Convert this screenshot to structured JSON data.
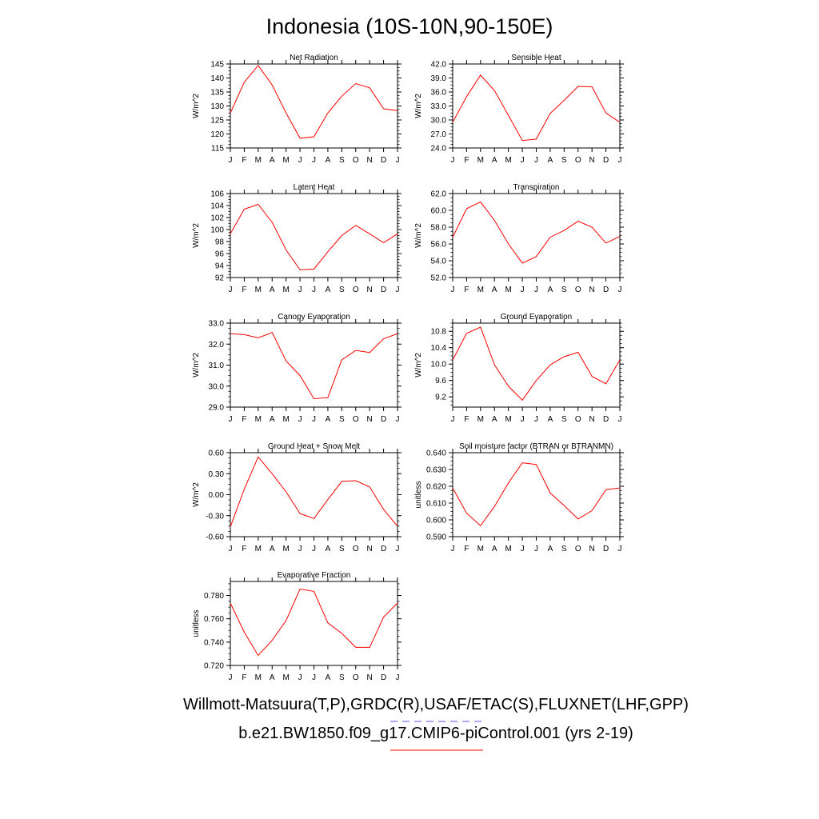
{
  "title": "Indonesia (10S-10N,90-150E)",
  "legend": {
    "line1": "Willmott-Matsuura(T,P),GRDC(R),USAF/ETAC(S),FLUXNET(LHF,GPP)",
    "line2": "b.e21.BW1850.f09_g17.CMIP6-piControl.001 (yrs 2-19)",
    "line1_color": "#5555ee",
    "line2_color": "#ff0000"
  },
  "chart_data": [
    {
      "type": "line",
      "title": "Net Radiation",
      "ylabel": "W/m^2",
      "x": [
        "J",
        "F",
        "M",
        "A",
        "M",
        "J",
        "J",
        "A",
        "S",
        "O",
        "N",
        "D",
        "J"
      ],
      "values": [
        127.5,
        138.5,
        144.5,
        137.5,
        127.5,
        118.5,
        119.0,
        127.5,
        133.5,
        138.0,
        136.5,
        129.0,
        128.3
      ],
      "ylim": [
        115,
        145
      ],
      "yticks": [
        "115",
        "120",
        "125",
        "130",
        "135",
        "140",
        "145"
      ],
      "line_color": "#ff0000"
    },
    {
      "type": "line",
      "title": "Sensible Heat",
      "ylabel": "W/m^2",
      "x": [
        "J",
        "F",
        "M",
        "A",
        "M",
        "J",
        "J",
        "A",
        "S",
        "O",
        "N",
        "D",
        "J"
      ],
      "values": [
        29.5,
        35.0,
        39.6,
        36.3,
        31.0,
        25.6,
        25.9,
        31.4,
        34.2,
        37.2,
        37.1,
        31.5,
        29.5
      ],
      "ylim": [
        24.0,
        42.0
      ],
      "yticks": [
        "24.0",
        "27.0",
        "30.0",
        "33.0",
        "36.0",
        "39.0",
        "42.0"
      ],
      "line_color": "#ff0000"
    },
    {
      "type": "line",
      "title": "Latent Heat",
      "ylabel": "W/m^2",
      "x": [
        "J",
        "F",
        "M",
        "A",
        "M",
        "J",
        "J",
        "A",
        "S",
        "O",
        "N",
        "D",
        "J"
      ],
      "values": [
        99.3,
        103.4,
        104.2,
        101.2,
        96.6,
        93.3,
        93.4,
        96.3,
        99.0,
        100.7,
        99.3,
        97.8,
        99.3
      ],
      "ylim": [
        92,
        106
      ],
      "yticks": [
        "92",
        "94",
        "96",
        "98",
        "100",
        "102",
        "104",
        "106"
      ],
      "line_color": "#ff0000"
    },
    {
      "type": "line",
      "title": "Transpiration",
      "ylabel": "W/m^2",
      "x": [
        "J",
        "F",
        "M",
        "A",
        "M",
        "J",
        "J",
        "A",
        "S",
        "O",
        "N",
        "D",
        "J"
      ],
      "values": [
        56.8,
        60.2,
        61.0,
        58.8,
        56.0,
        53.7,
        54.5,
        56.8,
        57.6,
        58.7,
        58.0,
        56.1,
        56.9
      ],
      "ylim": [
        52.0,
        62.0
      ],
      "yticks": [
        "52.0",
        "54.0",
        "56.0",
        "58.0",
        "60.0",
        "62.0"
      ],
      "line_color": "#ff0000"
    },
    {
      "type": "line",
      "title": "Canopy Evaporation",
      "ylabel": "W/m^2",
      "x": [
        "J",
        "F",
        "M",
        "A",
        "M",
        "J",
        "J",
        "A",
        "S",
        "O",
        "N",
        "D",
        "J"
      ],
      "values": [
        32.5,
        32.45,
        32.3,
        32.55,
        31.2,
        30.5,
        29.4,
        29.45,
        31.25,
        31.7,
        31.6,
        32.25,
        32.5
      ],
      "ylim": [
        29.0,
        33.0
      ],
      "yticks": [
        "29.0",
        "30.0",
        "31.0",
        "32.0",
        "33.0"
      ],
      "line_color": "#ff0000"
    },
    {
      "type": "line",
      "title": "Ground Evaporation",
      "ylabel": "W/m^2",
      "x": [
        "J",
        "F",
        "M",
        "A",
        "M",
        "J",
        "J",
        "A",
        "S",
        "O",
        "N",
        "D",
        "J"
      ],
      "values": [
        10.1,
        10.75,
        10.9,
        9.98,
        9.46,
        9.12,
        9.6,
        9.98,
        10.18,
        10.29,
        9.7,
        9.52,
        10.1
      ],
      "ylim": [
        8.95,
        11.0
      ],
      "yticks": [
        "9.2",
        "9.6",
        "10.0",
        "10.4",
        "10.8"
      ],
      "ytick_values": [
        9.2,
        9.6,
        10.0,
        10.4,
        10.8
      ],
      "line_color": "#ff0000"
    },
    {
      "type": "line",
      "title": "Ground Heat + Snow Melt",
      "ylabel": "W/m^2",
      "x": [
        "J",
        "F",
        "M",
        "A",
        "M",
        "J",
        "J",
        "A",
        "S",
        "O",
        "N",
        "D",
        "J"
      ],
      "values": [
        -0.46,
        0.08,
        0.54,
        0.3,
        0.04,
        -0.27,
        -0.34,
        -0.07,
        0.19,
        0.2,
        0.11,
        -0.21,
        -0.45
      ],
      "ylim": [
        -0.6,
        0.6
      ],
      "yticks": [
        "-0.60",
        "-0.30",
        "0.00",
        "0.30",
        "0.60"
      ],
      "line_color": "#ff0000"
    },
    {
      "type": "line",
      "title": "Soil moisture factor (BTRAN or BTRANMN)",
      "ylabel": "unitless",
      "x": [
        "J",
        "F",
        "M",
        "A",
        "M",
        "J",
        "J",
        "A",
        "S",
        "O",
        "N",
        "D",
        "J"
      ],
      "values": [
        0.619,
        0.604,
        0.5965,
        0.608,
        0.622,
        0.634,
        0.633,
        0.616,
        0.6085,
        0.6005,
        0.6055,
        0.618,
        0.619
      ],
      "ylim": [
        0.59,
        0.64
      ],
      "yticks": [
        "0.590",
        "0.600",
        "0.610",
        "0.620",
        "0.630",
        "0.640"
      ],
      "line_color": "#ff0000"
    },
    {
      "type": "line",
      "title": "Evaporative Fraction",
      "ylabel": "unitless",
      "x": [
        "J",
        "F",
        "M",
        "A",
        "M",
        "J",
        "J",
        "A",
        "S",
        "O",
        "N",
        "D",
        "J"
      ],
      "values": [
        0.7735,
        0.7485,
        0.7285,
        0.7415,
        0.7585,
        0.7855,
        0.7835,
        0.7565,
        0.7475,
        0.7355,
        0.7355,
        0.7615,
        0.7735
      ],
      "ylim": [
        0.72,
        0.792
      ],
      "yticks": [
        "0.720",
        "0.740",
        "0.760",
        "0.780"
      ],
      "ytick_values": [
        0.72,
        0.74,
        0.76,
        0.78
      ],
      "line_color": "#ff0000"
    }
  ]
}
